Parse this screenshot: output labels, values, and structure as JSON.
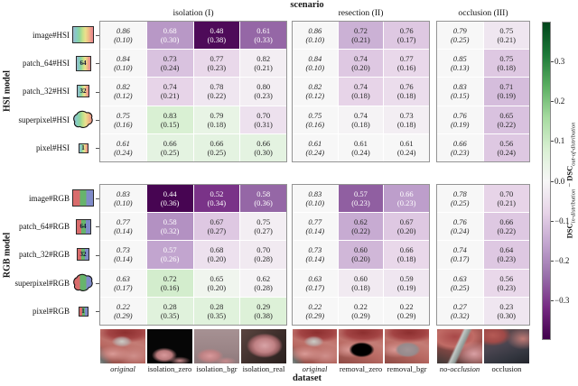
{
  "chart_data": {
    "type": "heatmap",
    "title": "scenario",
    "xlabel": "dataset",
    "colormap": "PRGn",
    "vmin": -0.4,
    "vmax": 0.4,
    "cell_content": "mean DSC with standard deviation in parentheses; first column of each scenario is in-distribution (italic), cell color encodes difference to in-distribution DSC",
    "colorbar": {
      "ticks": [
        {
          "v": 0.3,
          "label": "0.3"
        },
        {
          "v": 0.2,
          "label": "0.2"
        },
        {
          "v": 0.1,
          "label": "0.1"
        },
        {
          "v": 0.0,
          "label": "0.0"
        },
        {
          "v": -0.1,
          "label": "−0.1"
        },
        {
          "v": -0.2,
          "label": "−0.2"
        },
        {
          "v": -0.3,
          "label": "−0.3"
        }
      ],
      "label": {
        "dsc1": "DSC",
        "sub1": "in-distribution",
        "minus": " − ",
        "dsc2": "DSC",
        "sub2": "out-of-distribution"
      }
    },
    "scenarios": [
      {
        "label": "isolation (I)",
        "datasets": [
          {
            "name": "original",
            "in_distribution": true,
            "thumb": "original"
          },
          {
            "name": "isolation_zero",
            "in_distribution": false,
            "thumb": "isolation_zero"
          },
          {
            "name": "isolation_bgr",
            "in_distribution": false,
            "thumb": "isolation_bgr"
          },
          {
            "name": "isolation_real",
            "in_distribution": false,
            "thumb": "isolation_real"
          }
        ]
      },
      {
        "label": "resection (II)",
        "datasets": [
          {
            "name": "original",
            "in_distribution": true,
            "thumb": "original"
          },
          {
            "name": "removal_zero",
            "in_distribution": false,
            "thumb": "removal_zero"
          },
          {
            "name": "removal_bgr",
            "in_distribution": false,
            "thumb": "removal_bgr"
          }
        ]
      },
      {
        "label": "occlusion (III)",
        "datasets": [
          {
            "name": "no-occlusion",
            "in_distribution": true,
            "thumb": "no_occlusion"
          },
          {
            "name": "occlusion",
            "in_distribution": false,
            "thumb": "occlusion"
          }
        ]
      }
    ],
    "blocks": [
      {
        "label": "HSI model",
        "palette": "hsi",
        "rows": [
          {
            "label": "image#HSI",
            "icon": "image",
            "icon_text": "",
            "cells": [
              [
                [
                  "0.86",
                  "0.10"
                ],
                [
                  "0.68",
                  "0.30"
                ],
                [
                  "0.48",
                  "0.38"
                ],
                [
                  "0.61",
                  "0.33"
                ]
              ],
              [
                [
                  "0.86",
                  "0.10"
                ],
                [
                  "0.72",
                  "0.21"
                ],
                [
                  "0.76",
                  "0.17"
                ]
              ],
              [
                [
                  "0.79",
                  "0.25"
                ],
                [
                  "0.75",
                  "0.21"
                ]
              ]
            ]
          },
          {
            "label": "patch_64#HSI",
            "icon": "patch64",
            "icon_text": "64",
            "cells": [
              [
                [
                  "0.84",
                  "0.10"
                ],
                [
                  "0.73",
                  "0.24"
                ],
                [
                  "0.77",
                  "0.23"
                ],
                [
                  "0.82",
                  "0.21"
                ]
              ],
              [
                [
                  "0.84",
                  "0.10"
                ],
                [
                  "0.74",
                  "0.20"
                ],
                [
                  "0.77",
                  "0.16"
                ]
              ],
              [
                [
                  "0.85",
                  "0.13"
                ],
                [
                  "0.75",
                  "0.18"
                ]
              ]
            ]
          },
          {
            "label": "patch_32#HSI",
            "icon": "patch32",
            "icon_text": "32",
            "cells": [
              [
                [
                  "0.82",
                  "0.12"
                ],
                [
                  "0.74",
                  "0.21"
                ],
                [
                  "0.78",
                  "0.22"
                ],
                [
                  "0.80",
                  "0.23"
                ]
              ],
              [
                [
                  "0.82",
                  "0.12"
                ],
                [
                  "0.74",
                  "0.18"
                ],
                [
                  "0.76",
                  "0.18"
                ]
              ],
              [
                [
                  "0.83",
                  "0.15"
                ],
                [
                  "0.71",
                  "0.19"
                ]
              ]
            ]
          },
          {
            "label": "superpixel#HSI",
            "icon": "superpixel",
            "icon_text": "",
            "cells": [
              [
                [
                  "0.75",
                  "0.16"
                ],
                [
                  "0.83",
                  "0.15"
                ],
                [
                  "0.79",
                  "0.18"
                ],
                [
                  "0.70",
                  "0.31"
                ]
              ],
              [
                [
                  "0.75",
                  "0.16"
                ],
                [
                  "0.74",
                  "0.18"
                ],
                [
                  "0.73",
                  "0.18"
                ]
              ],
              [
                [
                  "0.76",
                  "0.19"
                ],
                [
                  "0.65",
                  "0.22"
                ]
              ]
            ]
          },
          {
            "label": "pixel#HSI",
            "icon": "pixel",
            "icon_text": "1",
            "cells": [
              [
                [
                  "0.61",
                  "0.24"
                ],
                [
                  "0.66",
                  "0.25"
                ],
                [
                  "0.66",
                  "0.25"
                ],
                [
                  "0.66",
                  "0.30"
                ]
              ],
              [
                [
                  "0.61",
                  "0.24"
                ],
                [
                  "0.61",
                  "0.24"
                ],
                [
                  "0.61",
                  "0.24"
                ]
              ],
              [
                [
                  "0.66",
                  "0.23"
                ],
                [
                  "0.56",
                  "0.24"
                ]
              ]
            ]
          }
        ]
      },
      {
        "label": "RGB model",
        "palette": "rgb",
        "rows": [
          {
            "label": "image#RGB",
            "icon": "image",
            "icon_text": "",
            "cells": [
              [
                [
                  "0.83",
                  "0.10"
                ],
                [
                  "0.44",
                  "0.36"
                ],
                [
                  "0.52",
                  "0.34"
                ],
                [
                  "0.58",
                  "0.36"
                ]
              ],
              [
                [
                  "0.83",
                  "0.10"
                ],
                [
                  "0.57",
                  "0.23"
                ],
                [
                  "0.66",
                  "0.23"
                ]
              ],
              [
                [
                  "0.78",
                  "0.25"
                ],
                [
                  "0.70",
                  "0.21"
                ]
              ]
            ]
          },
          {
            "label": "patch_64#RGB",
            "icon": "patch64",
            "icon_text": "64",
            "cells": [
              [
                [
                  "0.77",
                  "0.14"
                ],
                [
                  "0.58",
                  "0.32"
                ],
                [
                  "0.67",
                  "0.27"
                ],
                [
                  "0.75",
                  "0.27"
                ]
              ],
              [
                [
                  "0.77",
                  "0.14"
                ],
                [
                  "0.62",
                  "0.22"
                ],
                [
                  "0.67",
                  "0.20"
                ]
              ],
              [
                [
                  "0.76",
                  "0.24"
                ],
                [
                  "0.66",
                  "0.22"
                ]
              ]
            ]
          },
          {
            "label": "patch_32#RGB",
            "icon": "patch32",
            "icon_text": "32",
            "cells": [
              [
                [
                  "0.73",
                  "0.14"
                ],
                [
                  "0.57",
                  "0.26"
                ],
                [
                  "0.68",
                  "0.20"
                ],
                [
                  "0.70",
                  "0.28"
                ]
              ],
              [
                [
                  "0.73",
                  "0.14"
                ],
                [
                  "0.60",
                  "0.20"
                ],
                [
                  "0.66",
                  "0.18"
                ]
              ],
              [
                [
                  "0.74",
                  "0.17"
                ],
                [
                  "0.64",
                  "0.23"
                ]
              ]
            ]
          },
          {
            "label": "superpixel#RGB",
            "icon": "superpixel",
            "icon_text": "",
            "cells": [
              [
                [
                  "0.63",
                  "0.17"
                ],
                [
                  "0.72",
                  "0.16"
                ],
                [
                  "0.65",
                  "0.20"
                ],
                [
                  "0.62",
                  "0.28"
                ]
              ],
              [
                [
                  "0.63",
                  "0.17"
                ],
                [
                  "0.60",
                  "0.18"
                ],
                [
                  "0.59",
                  "0.19"
                ]
              ],
              [
                [
                  "0.63",
                  "0.25"
                ],
                [
                  "0.56",
                  "0.23"
                ]
              ]
            ]
          },
          {
            "label": "pixel#RGB",
            "icon": "pixel",
            "icon_text": "1",
            "cells": [
              [
                [
                  "0.22",
                  "0.29"
                ],
                [
                  "0.28",
                  "0.35"
                ],
                [
                  "0.28",
                  "0.35"
                ],
                [
                  "0.29",
                  "0.38"
                ]
              ],
              [
                [
                  "0.22",
                  "0.29"
                ],
                [
                  "0.22",
                  "0.29"
                ],
                [
                  "0.22",
                  "0.29"
                ]
              ],
              [
                [
                  "0.27",
                  "0.32"
                ],
                [
                  "0.23",
                  "0.30"
                ]
              ]
            ]
          }
        ]
      }
    ]
  }
}
